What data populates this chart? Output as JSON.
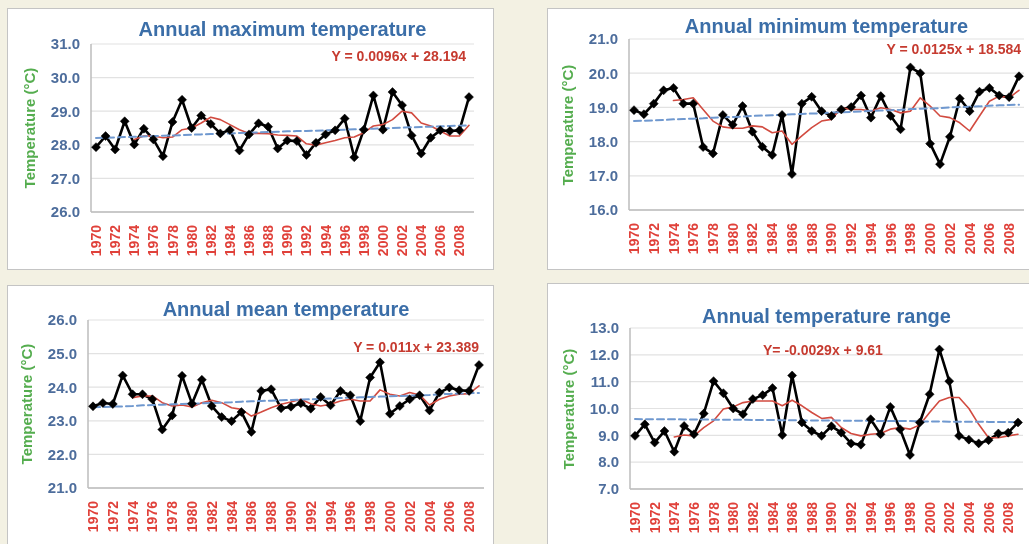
{
  "chart_data": [
    {
      "type": "line",
      "title": "Annual maximum temperature",
      "ylabel": "Temperature (°C)",
      "annotations": [
        "Y = 0.0096x + 28.194"
      ],
      "grid": "y",
      "categories": [
        "1970",
        null,
        "1972",
        null,
        "1974",
        null,
        "1976",
        null,
        "1978",
        null,
        "1980",
        null,
        "1982",
        null,
        "1984",
        null,
        "1986",
        null,
        "1988",
        null,
        "1990",
        null,
        "1992",
        null,
        "1994",
        null,
        "1996",
        null,
        "1998",
        null,
        "2000",
        null,
        "2002",
        null,
        "2004",
        null,
        "2006",
        null,
        "2008",
        null
      ],
      "ylim": [
        26,
        31
      ],
      "yticks": [
        {
          "value": 26,
          "label": "26.0"
        },
        {
          "value": 27,
          "label": "27.0"
        },
        {
          "value": 28,
          "label": "28.0"
        },
        {
          "value": 29,
          "label": "29.0"
        },
        {
          "value": 30,
          "label": "30.0"
        },
        {
          "value": 31,
          "label": "31.0"
        }
      ],
      "series": [
        {
          "color": "#000000",
          "marker": "diamond",
          "values": [
            27.93,
            28.26,
            27.86,
            28.7,
            28.01,
            28.48,
            28.16,
            27.66,
            28.68,
            29.34,
            28.5,
            28.87,
            28.62,
            28.34,
            28.44,
            27.83,
            28.31,
            28.64,
            28.54,
            27.89,
            28.13,
            28.11,
            27.7,
            28.06,
            28.31,
            28.43,
            28.78,
            27.63,
            28.45,
            29.47,
            28.45,
            29.57,
            29.18,
            28.28,
            27.74,
            28.21,
            28.43,
            28.41,
            28.43,
            29.42
          ]
        },
        {
          "color": "#d24b40",
          "values": [
            null,
            null,
            null,
            null,
            28.16,
            28.26,
            28.26,
            28.21,
            28.23,
            28.45,
            28.5,
            28.65,
            28.82,
            28.75,
            28.6,
            28.45,
            28.34,
            28.34,
            28.33,
            28.29,
            28.28,
            28.26,
            28.03,
            27.99,
            28.06,
            28.13,
            28.21,
            28.23,
            28.36,
            28.56,
            28.6,
            28.75,
            29.0,
            28.95,
            28.65,
            28.56,
            28.41,
            28.26,
            28.26,
            28.58
          ]
        },
        {
          "color": "#6f98cf",
          "line_style": "dashed",
          "values": [
            28.2,
            28.21,
            28.22,
            28.23,
            28.24,
            28.25,
            28.26,
            28.27,
            28.28,
            28.29,
            28.3,
            28.31,
            28.32,
            28.33,
            28.34,
            28.35,
            28.36,
            28.37,
            28.38,
            28.39,
            28.4,
            28.41,
            28.41,
            28.42,
            28.43,
            28.44,
            28.45,
            28.46,
            28.47,
            28.48,
            28.49,
            28.5,
            28.51,
            28.52,
            28.53,
            28.54,
            28.55,
            28.56,
            28.57,
            28.58
          ]
        }
      ]
    },
    {
      "type": "line",
      "title": "Annual minimum temperature",
      "ylabel": "Temperature (°C)",
      "annotations": [
        "Y = 0.0125x + 18.584"
      ],
      "grid": "y",
      "categories": [
        "1970",
        null,
        "1972",
        null,
        "1974",
        null,
        "1976",
        null,
        "1978",
        null,
        "1980",
        null,
        "1982",
        null,
        "1984",
        null,
        "1986",
        null,
        "1988",
        null,
        "1990",
        null,
        "1992",
        null,
        "1994",
        null,
        "1996",
        null,
        "1998",
        null,
        "2000",
        null,
        "2002",
        null,
        "2004",
        null,
        "2006",
        null,
        "2008",
        null
      ],
      "ylim": [
        16,
        21
      ],
      "yticks": [
        {
          "value": 16,
          "label": "16.0"
        },
        {
          "value": 17,
          "label": "17.0"
        },
        {
          "value": 18,
          "label": "18.0"
        },
        {
          "value": 19,
          "label": "19.0"
        },
        {
          "value": 20,
          "label": "20.0"
        },
        {
          "value": 21,
          "label": "21.0"
        }
      ],
      "series": [
        {
          "color": "#000000",
          "marker": "diamond",
          "values": [
            18.92,
            18.8,
            19.11,
            19.5,
            19.57,
            19.11,
            19.11,
            17.84,
            17.65,
            18.78,
            18.49,
            19.04,
            18.29,
            17.85,
            17.61,
            18.78,
            17.05,
            19.11,
            19.31,
            18.89,
            18.75,
            18.94,
            19.01,
            19.35,
            18.7,
            19.33,
            18.75,
            18.36,
            20.17,
            20.0,
            17.94,
            17.34,
            18.14,
            19.26,
            18.89,
            19.46,
            19.57,
            19.35,
            19.3,
            19.91
          ]
        },
        {
          "color": "#d24b40",
          "values": [
            null,
            null,
            null,
            null,
            19.2,
            19.23,
            19.28,
            18.94,
            18.6,
            18.43,
            18.39,
            18.39,
            18.46,
            18.43,
            18.26,
            18.31,
            17.92,
            18.17,
            18.41,
            18.6,
            18.65,
            18.99,
            18.94,
            18.94,
            18.89,
            18.99,
            18.94,
            18.84,
            18.89,
            19.28,
            19.04,
            18.75,
            18.7,
            18.55,
            18.31,
            18.75,
            19.18,
            19.33,
            19.28,
            19.5
          ]
        },
        {
          "color": "#6f98cf",
          "line_style": "dashed",
          "values": [
            18.6,
            18.61,
            18.62,
            18.63,
            18.65,
            18.66,
            18.67,
            18.68,
            18.7,
            18.71,
            18.72,
            18.73,
            18.75,
            18.76,
            18.77,
            18.78,
            18.8,
            18.81,
            18.82,
            18.83,
            18.85,
            18.86,
            18.87,
            18.88,
            18.9,
            18.91,
            18.92,
            18.93,
            18.95,
            18.96,
            18.97,
            18.98,
            19.0,
            19.01,
            19.02,
            19.03,
            19.05,
            19.06,
            19.07,
            19.08
          ]
        }
      ]
    },
    {
      "type": "line",
      "title": "Annual mean temperature",
      "ylabel": "Temperature (°C)",
      "annotations": [
        "Y = 0.011x + 23.389"
      ],
      "grid": "y",
      "categories": [
        "1970",
        null,
        "1972",
        null,
        "1974",
        null,
        "1976",
        null,
        "1978",
        null,
        "1980",
        null,
        "1982",
        null,
        "1984",
        null,
        "1986",
        null,
        "1988",
        null,
        "1990",
        null,
        "1992",
        null,
        "1994",
        null,
        "1996",
        null,
        "1998",
        null,
        "2000",
        null,
        "2002",
        null,
        "2004",
        null,
        "2006",
        null,
        "2008",
        null
      ],
      "ylim": [
        21,
        26
      ],
      "yticks": [
        {
          "value": 21,
          "label": "21.0"
        },
        {
          "value": 22,
          "label": "22.0"
        },
        {
          "value": 23,
          "label": "23.0"
        },
        {
          "value": 24,
          "label": "24.0"
        },
        {
          "value": 25,
          "label": "25.0"
        },
        {
          "value": 26,
          "label": "26.0"
        }
      ],
      "series": [
        {
          "color": "#000000",
          "marker": "diamond",
          "values": [
            23.43,
            23.53,
            23.5,
            24.35,
            23.79,
            23.79,
            23.64,
            22.74,
            23.16,
            24.34,
            23.51,
            24.22,
            23.44,
            23.11,
            22.99,
            23.26,
            22.67,
            23.89,
            23.94,
            23.37,
            23.42,
            23.52,
            23.36,
            23.71,
            23.46,
            23.89,
            23.76,
            22.99,
            24.29,
            24.74,
            23.21,
            23.44,
            23.64,
            23.76,
            23.31,
            23.84,
            23.99,
            23.91,
            23.89,
            24.66
          ]
        },
        {
          "color": "#d24b40",
          "values": [
            null,
            null,
            null,
            null,
            23.69,
            23.74,
            23.74,
            23.54,
            23.44,
            23.47,
            23.41,
            23.54,
            23.61,
            23.54,
            23.39,
            23.34,
            23.14,
            23.26,
            23.39,
            23.49,
            23.56,
            23.64,
            23.51,
            23.44,
            23.49,
            23.59,
            23.64,
            23.59,
            23.59,
            23.92,
            23.79,
            23.74,
            23.84,
            23.77,
            23.47,
            23.64,
            23.74,
            23.79,
            23.81,
            24.04
          ]
        },
        {
          "color": "#6f98cf",
          "line_style": "dashed",
          "values": [
            23.4,
            23.41,
            23.42,
            23.43,
            23.44,
            23.46,
            23.47,
            23.48,
            23.49,
            23.5,
            23.51,
            23.52,
            23.53,
            23.54,
            23.55,
            23.57,
            23.58,
            23.59,
            23.6,
            23.61,
            23.62,
            23.63,
            23.64,
            23.65,
            23.66,
            23.68,
            23.69,
            23.7,
            23.71,
            23.72,
            23.73,
            23.74,
            23.75,
            23.76,
            23.77,
            23.79,
            23.8,
            23.81,
            23.82,
            23.83
          ]
        }
      ]
    },
    {
      "type": "line",
      "title": "Annual temperature range",
      "ylabel": "Temperature (°C)",
      "annotations": [
        "Y= -0.0029x + 9.61"
      ],
      "grid": "y",
      "categories": [
        "1970",
        null,
        "1972",
        null,
        "1974",
        null,
        "1976",
        null,
        "1978",
        null,
        "1980",
        null,
        "1982",
        null,
        "1984",
        null,
        "1986",
        null,
        "1988",
        null,
        "1990",
        null,
        "1992",
        null,
        "1994",
        null,
        "1996",
        null,
        "1998",
        null,
        "2000",
        null,
        "2002",
        null,
        "2004",
        null,
        "2006",
        null,
        "2008",
        null
      ],
      "ylim": [
        7,
        13
      ],
      "yticks": [
        {
          "value": 7,
          "label": "7.0"
        },
        {
          "value": 8,
          "label": "8.0"
        },
        {
          "value": 9,
          "label": "9.0"
        },
        {
          "value": 10,
          "label": "10.0"
        },
        {
          "value": 11,
          "label": "11.0"
        },
        {
          "value": 12,
          "label": "12.0"
        },
        {
          "value": 13,
          "label": "13.0"
        }
      ],
      "series": [
        {
          "color": "#000000",
          "marker": "diamond",
          "values": [
            8.98,
            9.41,
            8.73,
            9.16,
            8.39,
            9.35,
            9.04,
            9.81,
            11.02,
            10.57,
            10.0,
            9.79,
            10.35,
            10.5,
            10.76,
            9.01,
            11.23,
            9.48,
            9.16,
            8.98,
            9.34,
            9.1,
            8.7,
            8.65,
            9.6,
            9.04,
            10.06,
            9.23,
            8.27,
            9.48,
            10.53,
            12.2,
            11.02,
            8.98,
            8.84,
            8.7,
            8.82,
            9.07,
            9.1,
            9.48
          ]
        },
        {
          "color": "#d24b40",
          "values": [
            null,
            null,
            null,
            null,
            8.94,
            9.01,
            8.98,
            9.29,
            9.54,
            9.98,
            10.06,
            10.22,
            10.28,
            10.28,
            10.28,
            10.1,
            10.31,
            10.1,
            9.85,
            9.63,
            9.67,
            9.29,
            9.07,
            8.98,
            9.04,
            9.07,
            9.23,
            9.29,
            9.23,
            9.39,
            9.85,
            10.28,
            10.41,
            10.41,
            10.0,
            9.41,
            8.91,
            8.91,
            8.98,
            9.04
          ]
        },
        {
          "color": "#6f98cf",
          "line_style": "dashed",
          "values": [
            9.61,
            9.6,
            9.6,
            9.6,
            9.6,
            9.59,
            9.59,
            9.59,
            9.58,
            9.58,
            9.58,
            9.58,
            9.57,
            9.57,
            9.57,
            9.56,
            9.56,
            9.56,
            9.55,
            9.55,
            9.55,
            9.55,
            9.54,
            9.54,
            9.54,
            9.53,
            9.53,
            9.53,
            9.53,
            9.52,
            9.52,
            9.52,
            9.51,
            9.51,
            9.51,
            9.51,
            9.5,
            9.5,
            9.5,
            9.49
          ]
        }
      ]
    }
  ]
}
